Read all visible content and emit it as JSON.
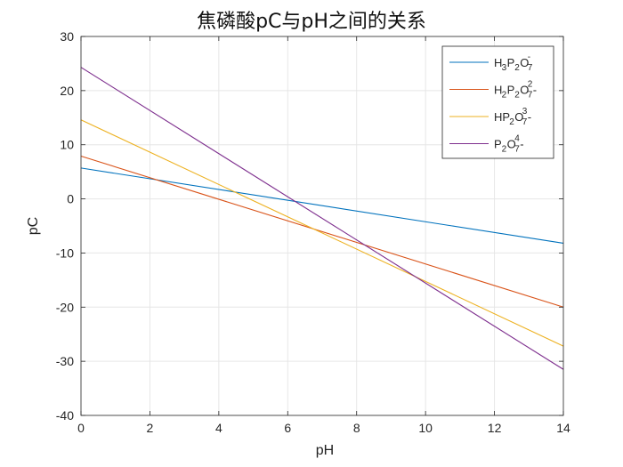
{
  "chart_data": {
    "type": "line",
    "title": "焦磷酸pC与pH之间的关系",
    "xlabel": "pH",
    "ylabel": "pC",
    "xlim": [
      0,
      14
    ],
    "ylim": [
      -40,
      30
    ],
    "xticks": [
      0,
      2,
      4,
      6,
      8,
      10,
      12,
      14
    ],
    "yticks": [
      -40,
      -30,
      -20,
      -10,
      0,
      10,
      20,
      30
    ],
    "grid": true,
    "legend_position": "top-right",
    "series": [
      {
        "name": "H3P2O7-",
        "name_parts": [
          [
            "H",
            ""
          ],
          [
            "3",
            "sub"
          ],
          [
            "P",
            ""
          ],
          [
            "2",
            "sub"
          ],
          [
            "O",
            ""
          ],
          [
            "7",
            "subsup",
            "-"
          ]
        ],
        "color": "#0072BD",
        "x": [
          0,
          14
        ],
        "y": [
          5.7,
          -8.2
        ]
      },
      {
        "name": "H2P2O72-",
        "name_parts": [
          [
            "H",
            ""
          ],
          [
            "2",
            "sub"
          ],
          [
            "P",
            ""
          ],
          [
            "2",
            "sub"
          ],
          [
            "O",
            ""
          ],
          [
            "7",
            "subsup",
            "2"
          ],
          [
            "-",
            ""
          ]
        ],
        "color": "#D95319",
        "x": [
          0,
          14
        ],
        "y": [
          7.9,
          -20.0
        ]
      },
      {
        "name": "HP2O73-",
        "name_parts": [
          [
            "HP",
            ""
          ],
          [
            "2",
            "sub"
          ],
          [
            "O",
            ""
          ],
          [
            "7",
            "subsup",
            "3"
          ],
          [
            "-",
            ""
          ]
        ],
        "color": "#EDB120",
        "x": [
          0,
          14
        ],
        "y": [
          14.6,
          -27.2
        ]
      },
      {
        "name": "P2O74-",
        "name_parts": [
          [
            "P",
            ""
          ],
          [
            "2",
            "sub"
          ],
          [
            "O",
            ""
          ],
          [
            "7",
            "subsup",
            "4"
          ],
          [
            "-",
            ""
          ]
        ],
        "color": "#7E2F8E",
        "x": [
          0,
          14
        ],
        "y": [
          24.3,
          -31.5
        ]
      }
    ]
  }
}
